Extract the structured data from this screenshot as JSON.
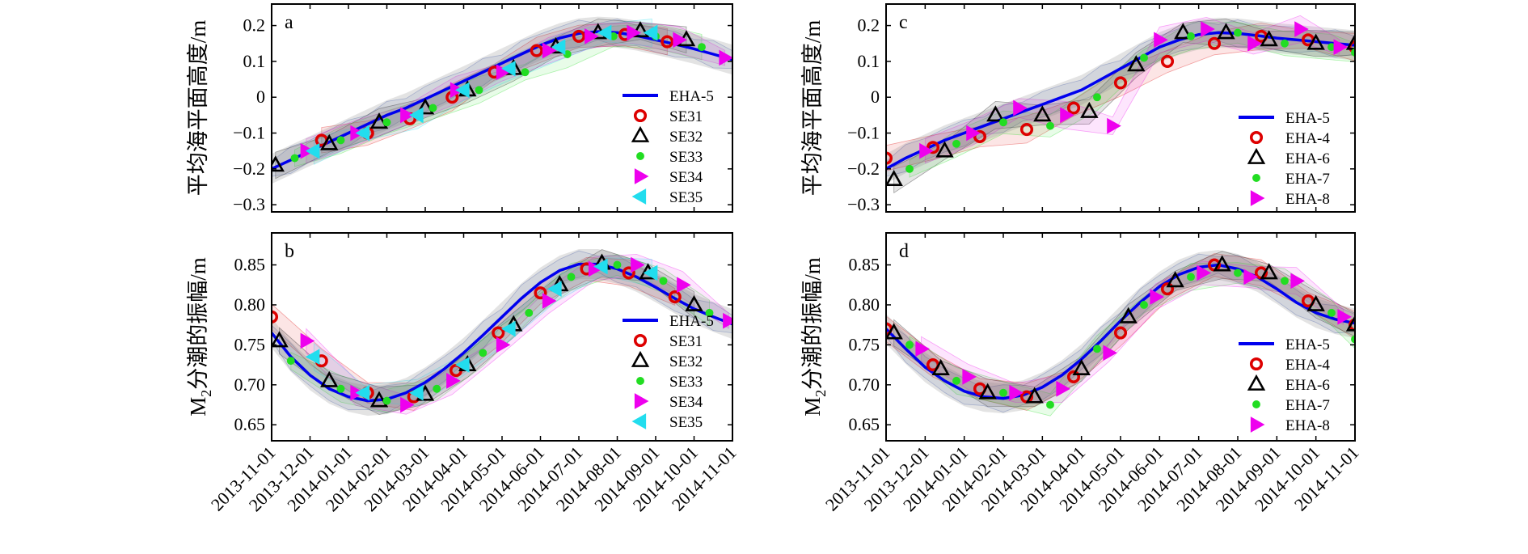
{
  "chart_data": [
    {
      "panel": "a",
      "type": "scatter",
      "ylabel": "平均海平面高度/m",
      "x_ticks": [
        "2013-11-01",
        "2013-12-01",
        "2014-01-01",
        "2014-02-01",
        "2014-03-01",
        "2014-04-01",
        "2014-05-01",
        "2014-06-01",
        "2014-07-01",
        "2014-08-01",
        "2014-09-01",
        "2014-10-01",
        "2014-11-01"
      ],
      "xlim": [
        0,
        12
      ],
      "ylim": [
        -0.32,
        0.26
      ],
      "y_ticks": [
        -0.3,
        -0.2,
        -0.1,
        0,
        0.1,
        0.2
      ],
      "y_tick_labels": [
        "−0.3",
        "−0.2",
        "−0.1",
        "0",
        "0.1",
        "0.2"
      ],
      "legend_position": "right",
      "series": [
        {
          "name": "EHA-5",
          "marker": "line",
          "color": "#0000ee",
          "x": [
            0,
            0.5,
            1,
            1.5,
            2,
            2.5,
            3,
            3.5,
            4,
            4.5,
            5,
            5.5,
            6,
            6.5,
            7,
            7.5,
            8,
            8.5,
            9,
            9.5,
            10,
            10.5,
            11,
            11.5,
            12
          ],
          "y": [
            -0.2,
            -0.175,
            -0.15,
            -0.125,
            -0.1,
            -0.075,
            -0.05,
            -0.03,
            -0.005,
            0.02,
            0.045,
            0.07,
            0.095,
            0.12,
            0.145,
            0.165,
            0.178,
            0.183,
            0.18,
            0.172,
            0.16,
            0.148,
            0.135,
            0.12,
            0.105
          ]
        },
        {
          "name": "SE31",
          "marker": "circle",
          "color": "#dd0000",
          "x": [
            1.3,
            2.5,
            3.6,
            4.7,
            5.8,
            6.9,
            8.0,
            9.2,
            10.3
          ],
          "y": [
            -0.12,
            -0.1,
            -0.06,
            0.0,
            0.07,
            0.13,
            0.17,
            0.175,
            0.155
          ]
        },
        {
          "name": "SE32",
          "marker": "triangle-up",
          "color": "#000000",
          "x": [
            0.1,
            1.5,
            2.8,
            4.0,
            5.1,
            6.3,
            7.4,
            8.5,
            9.6,
            10.8
          ],
          "y": [
            -0.19,
            -0.13,
            -0.07,
            -0.03,
            0.02,
            0.08,
            0.14,
            0.18,
            0.185,
            0.16
          ]
        },
        {
          "name": "SE33",
          "marker": "dot",
          "color": "#22dd22",
          "x": [
            0.6,
            1.8,
            3.0,
            4.2,
            5.4,
            6.6,
            7.7,
            8.9,
            10.0,
            11.2
          ],
          "y": [
            -0.17,
            -0.12,
            -0.07,
            -0.03,
            0.02,
            0.07,
            0.12,
            0.17,
            0.17,
            0.14
          ]
        },
        {
          "name": "SE34",
          "marker": "triangle-right",
          "color": "#ee00ee",
          "x": [
            0.9,
            2.2,
            3.5,
            4.8,
            6.0,
            7.2,
            8.3,
            9.4,
            10.6,
            11.8
          ],
          "y": [
            -0.15,
            -0.1,
            -0.05,
            0.02,
            0.07,
            0.13,
            0.17,
            0.18,
            0.16,
            0.11
          ]
        },
        {
          "name": "SE35",
          "marker": "triangle-left",
          "color": "#22ddee",
          "x": [
            1.1,
            2.4,
            3.8,
            5.0,
            6.2,
            7.5,
            8.7,
            9.9
          ],
          "y": [
            -0.15,
            -0.1,
            -0.05,
            0.02,
            0.08,
            0.14,
            0.18,
            0.18
          ]
        }
      ]
    },
    {
      "panel": "b",
      "type": "scatter",
      "ylabel_prefix": "M",
      "ylabel_sub": "2",
      "ylabel_suffix": "分潮的振幅/m",
      "x_ticks": [
        "2013-11-01",
        "2013-12-01",
        "2014-01-01",
        "2014-02-01",
        "2014-03-01",
        "2014-04-01",
        "2014-05-01",
        "2014-06-01",
        "2014-07-01",
        "2014-08-01",
        "2014-09-01",
        "2014-10-01",
        "2014-11-01"
      ],
      "xlim": [
        0,
        12
      ],
      "ylim": [
        0.63,
        0.89
      ],
      "y_ticks": [
        0.65,
        0.7,
        0.75,
        0.8,
        0.85
      ],
      "y_tick_labels": [
        "0.65",
        "0.70",
        "0.75",
        "0.80",
        "0.85"
      ],
      "legend_position": "right",
      "series": [
        {
          "name": "EHA-5",
          "marker": "line",
          "color": "#0000ee",
          "x": [
            0,
            0.5,
            1,
            1.5,
            2,
            2.5,
            3,
            3.5,
            4,
            4.5,
            5,
            5.5,
            6,
            6.5,
            7,
            7.5,
            8,
            8.5,
            9,
            9.5,
            10,
            10.5,
            11,
            11.5,
            12
          ],
          "y": [
            0.765,
            0.735,
            0.712,
            0.695,
            0.685,
            0.68,
            0.682,
            0.69,
            0.703,
            0.72,
            0.74,
            0.762,
            0.785,
            0.808,
            0.828,
            0.843,
            0.851,
            0.851,
            0.845,
            0.835,
            0.822,
            0.808,
            0.795,
            0.785,
            0.776
          ]
        },
        {
          "name": "SE31",
          "marker": "circle",
          "color": "#dd0000",
          "x": [
            0,
            1.3,
            2.5,
            3.7,
            4.8,
            5.9,
            7.0,
            8.2,
            9.3,
            10.5
          ],
          "y": [
            0.785,
            0.73,
            0.69,
            0.685,
            0.718,
            0.765,
            0.815,
            0.845,
            0.84,
            0.81
          ]
        },
        {
          "name": "SE32",
          "marker": "triangle-up",
          "color": "#000000",
          "x": [
            0.2,
            1.5,
            2.8,
            4.0,
            5.1,
            6.3,
            7.5,
            8.6,
            9.8,
            11.0
          ],
          "y": [
            0.755,
            0.705,
            0.68,
            0.688,
            0.725,
            0.775,
            0.825,
            0.852,
            0.84,
            0.8
          ]
        },
        {
          "name": "SE33",
          "marker": "dot",
          "color": "#22dd22",
          "x": [
            0.5,
            1.8,
            3.0,
            4.3,
            5.5,
            6.7,
            7.8,
            9.0,
            10.2,
            11.4
          ],
          "y": [
            0.73,
            0.695,
            0.68,
            0.695,
            0.74,
            0.79,
            0.835,
            0.85,
            0.83,
            0.79
          ]
        },
        {
          "name": "SE34",
          "marker": "triangle-right",
          "color": "#ee00ee",
          "x": [
            0.9,
            2.2,
            3.5,
            4.7,
            6.0,
            7.2,
            8.4,
            9.5,
            10.7,
            11.9
          ],
          "y": [
            0.755,
            0.69,
            0.675,
            0.705,
            0.75,
            0.805,
            0.845,
            0.85,
            0.825,
            0.78
          ]
        },
        {
          "name": "SE35",
          "marker": "triangle-left",
          "color": "#22ddee",
          "x": [
            1.1,
            2.4,
            3.8,
            5.0,
            6.2,
            7.4,
            8.6,
            9.9
          ],
          "y": [
            0.735,
            0.69,
            0.69,
            0.725,
            0.77,
            0.82,
            0.848,
            0.84
          ]
        }
      ]
    },
    {
      "panel": "c",
      "type": "scatter",
      "ylabel": "平均海平面高度/m",
      "x_ticks": [
        "2013-11-01",
        "2013-12-01",
        "2014-01-01",
        "2014-02-01",
        "2014-03-01",
        "2014-04-01",
        "2014-05-01",
        "2014-06-01",
        "2014-07-01",
        "2014-08-01",
        "2014-09-01",
        "2014-10-01",
        "2014-11-01"
      ],
      "xlim": [
        0,
        12
      ],
      "ylim": [
        -0.32,
        0.26
      ],
      "y_ticks": [
        -0.3,
        -0.2,
        -0.1,
        0,
        0.1,
        0.2
      ],
      "y_tick_labels": [
        "−0.3",
        "−0.2",
        "−0.1",
        "0",
        "0.1",
        "0.2"
      ],
      "legend_position": "right",
      "series": [
        {
          "name": "EHA-5",
          "marker": "line",
          "color": "#0000ee",
          "x": [
            0,
            0.5,
            1,
            1.5,
            2,
            2.5,
            3,
            3.5,
            4,
            4.5,
            5,
            5.5,
            6,
            6.5,
            7,
            7.5,
            8,
            8.5,
            9,
            9.5,
            10,
            10.5,
            11,
            11.5,
            12
          ],
          "y": [
            -0.2,
            -0.17,
            -0.145,
            -0.12,
            -0.1,
            -0.08,
            -0.06,
            -0.04,
            -0.02,
            0.0,
            0.02,
            0.05,
            0.08,
            0.11,
            0.14,
            0.16,
            0.175,
            0.18,
            0.178,
            0.172,
            0.165,
            0.16,
            0.155,
            0.15,
            0.145
          ]
        },
        {
          "name": "EHA-4",
          "marker": "circle",
          "color": "#dd0000",
          "x": [
            0,
            1.2,
            2.4,
            3.6,
            4.8,
            6.0,
            7.2,
            8.4,
            9.6,
            10.8,
            12.0
          ],
          "y": [
            -0.17,
            -0.14,
            -0.11,
            -0.09,
            -0.03,
            0.04,
            0.1,
            0.15,
            0.17,
            0.16,
            0.14
          ]
        },
        {
          "name": "EHA-6",
          "marker": "triangle-up",
          "color": "#000000",
          "x": [
            0.2,
            1.5,
            2.8,
            4.0,
            5.2,
            6.4,
            7.6,
            8.7,
            9.8,
            11.0,
            12.0
          ],
          "y": [
            -0.23,
            -0.15,
            -0.05,
            -0.05,
            -0.04,
            0.09,
            0.18,
            0.18,
            0.16,
            0.15,
            0.15
          ]
        },
        {
          "name": "EHA-7",
          "marker": "dot",
          "color": "#22dd22",
          "x": [
            0.6,
            1.8,
            3.0,
            4.2,
            5.4,
            6.6,
            7.8,
            9.0,
            10.2,
            11.4,
            12.0
          ],
          "y": [
            -0.2,
            -0.13,
            -0.07,
            -0.08,
            0.0,
            0.11,
            0.17,
            0.18,
            0.15,
            0.14,
            0.125
          ]
        },
        {
          "name": "EHA-8",
          "marker": "triangle-right",
          "color": "#ee00ee",
          "x": [
            1.0,
            2.2,
            3.4,
            4.6,
            5.8,
            7.0,
            8.2,
            9.4,
            10.6,
            11.6
          ],
          "y": [
            -0.15,
            -0.1,
            -0.03,
            -0.05,
            -0.08,
            0.16,
            0.19,
            0.15,
            0.19,
            0.14
          ]
        }
      ]
    },
    {
      "panel": "d",
      "type": "scatter",
      "ylabel_prefix": "M",
      "ylabel_sub": "2",
      "ylabel_suffix": "分潮的振幅/m",
      "x_ticks": [
        "2013-11-01",
        "2013-12-01",
        "2014-01-01",
        "2014-02-01",
        "2014-03-01",
        "2014-04-01",
        "2014-05-01",
        "2014-06-01",
        "2014-07-01",
        "2014-08-01",
        "2014-09-01",
        "2014-10-01",
        "2014-11-01"
      ],
      "xlim": [
        0,
        12
      ],
      "ylim": [
        0.63,
        0.89
      ],
      "y_ticks": [
        0.65,
        0.7,
        0.75,
        0.8,
        0.85
      ],
      "y_tick_labels": [
        "0.65",
        "0.70",
        "0.75",
        "0.80",
        "0.85"
      ],
      "legend_position": "right",
      "series": [
        {
          "name": "EHA-5",
          "marker": "line",
          "color": "#0000ee",
          "x": [
            0,
            0.5,
            1,
            1.5,
            2,
            2.5,
            3,
            3.5,
            4,
            4.5,
            5,
            5.5,
            6,
            6.5,
            7,
            7.5,
            8,
            8.5,
            9,
            9.5,
            10,
            10.5,
            11,
            11.5,
            12
          ],
          "y": [
            0.77,
            0.745,
            0.722,
            0.705,
            0.692,
            0.685,
            0.683,
            0.687,
            0.697,
            0.712,
            0.732,
            0.755,
            0.78,
            0.803,
            0.823,
            0.838,
            0.847,
            0.85,
            0.845,
            0.835,
            0.82,
            0.803,
            0.79,
            0.782,
            0.777
          ]
        },
        {
          "name": "EHA-4",
          "marker": "circle",
          "color": "#dd0000",
          "x": [
            0,
            1.2,
            2.4,
            3.6,
            4.8,
            6.0,
            7.2,
            8.4,
            9.6,
            10.8,
            12.0
          ],
          "y": [
            0.77,
            0.725,
            0.695,
            0.685,
            0.71,
            0.765,
            0.82,
            0.85,
            0.84,
            0.805,
            0.775
          ]
        },
        {
          "name": "EHA-6",
          "marker": "triangle-up",
          "color": "#000000",
          "x": [
            0.2,
            1.4,
            2.6,
            3.8,
            5.0,
            6.2,
            7.4,
            8.6,
            9.8,
            11.0,
            12.0
          ],
          "y": [
            0.765,
            0.72,
            0.69,
            0.685,
            0.72,
            0.785,
            0.83,
            0.85,
            0.84,
            0.8,
            0.775
          ]
        },
        {
          "name": "EHA-7",
          "marker": "dot",
          "color": "#22dd22",
          "x": [
            0.6,
            1.8,
            3.0,
            4.2,
            5.4,
            6.6,
            7.8,
            9.0,
            10.2,
            11.4,
            12.0
          ],
          "y": [
            0.75,
            0.705,
            0.69,
            0.675,
            0.745,
            0.8,
            0.835,
            0.84,
            0.83,
            0.79,
            0.757
          ]
        },
        {
          "name": "EHA-8",
          "marker": "triangle-right",
          "color": "#ee00ee",
          "x": [
            0.9,
            2.1,
            3.3,
            4.5,
            5.7,
            6.9,
            8.1,
            9.3,
            10.5,
            11.7
          ],
          "y": [
            0.745,
            0.71,
            0.69,
            0.695,
            0.74,
            0.81,
            0.84,
            0.835,
            0.83,
            0.785
          ]
        }
      ]
    }
  ]
}
